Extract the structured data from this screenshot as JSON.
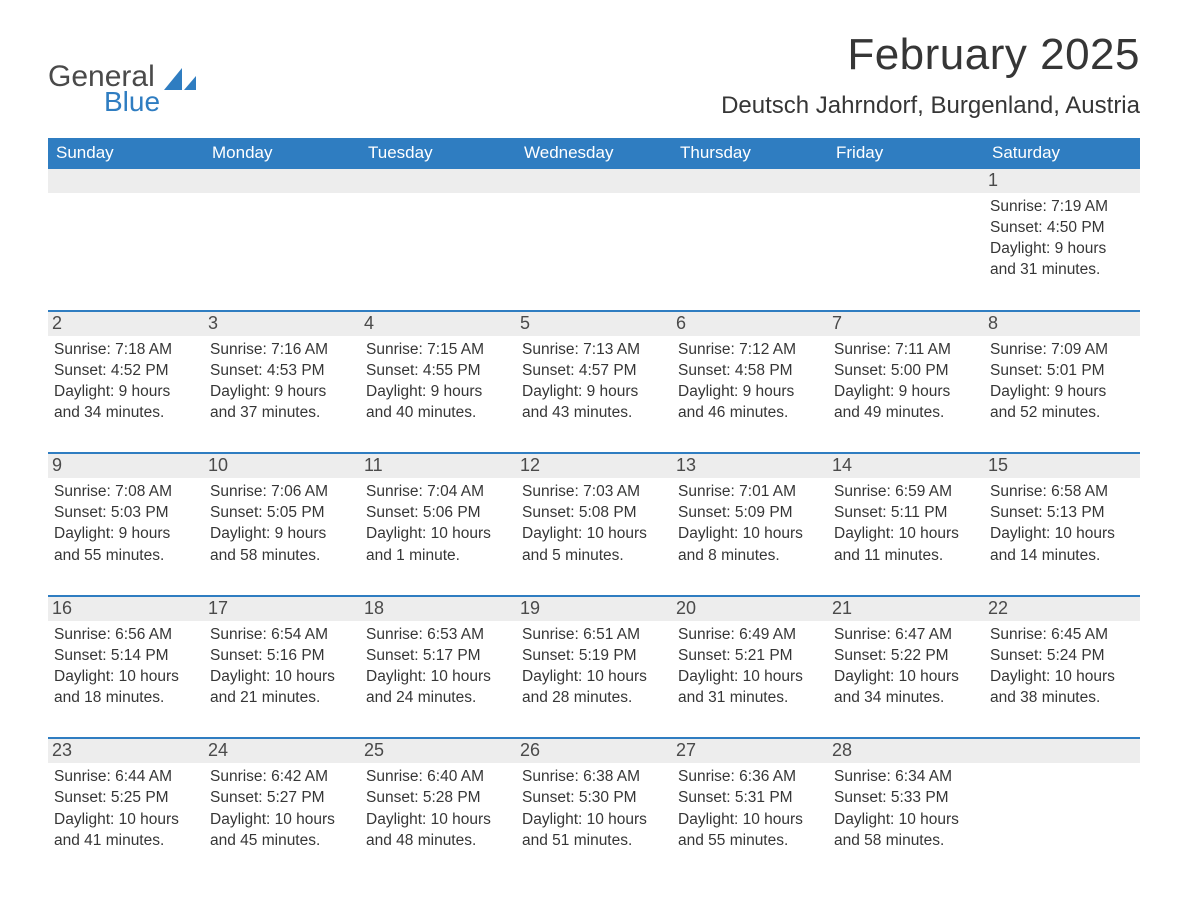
{
  "colors": {
    "header_bg": "#2f7dc1",
    "header_text": "#ffffff",
    "daynum_bg": "#ededed",
    "text": "#363636",
    "logo_gray": "#4a4a4a",
    "logo_blue": "#2f7dc1",
    "week_border": "#2f7dc1"
  },
  "logo": {
    "word1": "General",
    "word2": "Blue"
  },
  "title": "February 2025",
  "location": "Deutsch Jahrndorf, Burgenland, Austria",
  "weekdays": [
    "Sunday",
    "Monday",
    "Tuesday",
    "Wednesday",
    "Thursday",
    "Friday",
    "Saturday"
  ],
  "weeks": [
    [
      null,
      null,
      null,
      null,
      null,
      null,
      {
        "n": "1",
        "sunrise": "Sunrise: 7:19 AM",
        "sunset": "Sunset: 4:50 PM",
        "day1": "Daylight: 9 hours",
        "day2": "and 31 minutes."
      }
    ],
    [
      {
        "n": "2",
        "sunrise": "Sunrise: 7:18 AM",
        "sunset": "Sunset: 4:52 PM",
        "day1": "Daylight: 9 hours",
        "day2": "and 34 minutes."
      },
      {
        "n": "3",
        "sunrise": "Sunrise: 7:16 AM",
        "sunset": "Sunset: 4:53 PM",
        "day1": "Daylight: 9 hours",
        "day2": "and 37 minutes."
      },
      {
        "n": "4",
        "sunrise": "Sunrise: 7:15 AM",
        "sunset": "Sunset: 4:55 PM",
        "day1": "Daylight: 9 hours",
        "day2": "and 40 minutes."
      },
      {
        "n": "5",
        "sunrise": "Sunrise: 7:13 AM",
        "sunset": "Sunset: 4:57 PM",
        "day1": "Daylight: 9 hours",
        "day2": "and 43 minutes."
      },
      {
        "n": "6",
        "sunrise": "Sunrise: 7:12 AM",
        "sunset": "Sunset: 4:58 PM",
        "day1": "Daylight: 9 hours",
        "day2": "and 46 minutes."
      },
      {
        "n": "7",
        "sunrise": "Sunrise: 7:11 AM",
        "sunset": "Sunset: 5:00 PM",
        "day1": "Daylight: 9 hours",
        "day2": "and 49 minutes."
      },
      {
        "n": "8",
        "sunrise": "Sunrise: 7:09 AM",
        "sunset": "Sunset: 5:01 PM",
        "day1": "Daylight: 9 hours",
        "day2": "and 52 minutes."
      }
    ],
    [
      {
        "n": "9",
        "sunrise": "Sunrise: 7:08 AM",
        "sunset": "Sunset: 5:03 PM",
        "day1": "Daylight: 9 hours",
        "day2": "and 55 minutes."
      },
      {
        "n": "10",
        "sunrise": "Sunrise: 7:06 AM",
        "sunset": "Sunset: 5:05 PM",
        "day1": "Daylight: 9 hours",
        "day2": "and 58 minutes."
      },
      {
        "n": "11",
        "sunrise": "Sunrise: 7:04 AM",
        "sunset": "Sunset: 5:06 PM",
        "day1": "Daylight: 10 hours",
        "day2": "and 1 minute."
      },
      {
        "n": "12",
        "sunrise": "Sunrise: 7:03 AM",
        "sunset": "Sunset: 5:08 PM",
        "day1": "Daylight: 10 hours",
        "day2": "and 5 minutes."
      },
      {
        "n": "13",
        "sunrise": "Sunrise: 7:01 AM",
        "sunset": "Sunset: 5:09 PM",
        "day1": "Daylight: 10 hours",
        "day2": "and 8 minutes."
      },
      {
        "n": "14",
        "sunrise": "Sunrise: 6:59 AM",
        "sunset": "Sunset: 5:11 PM",
        "day1": "Daylight: 10 hours",
        "day2": "and 11 minutes."
      },
      {
        "n": "15",
        "sunrise": "Sunrise: 6:58 AM",
        "sunset": "Sunset: 5:13 PM",
        "day1": "Daylight: 10 hours",
        "day2": "and 14 minutes."
      }
    ],
    [
      {
        "n": "16",
        "sunrise": "Sunrise: 6:56 AM",
        "sunset": "Sunset: 5:14 PM",
        "day1": "Daylight: 10 hours",
        "day2": "and 18 minutes."
      },
      {
        "n": "17",
        "sunrise": "Sunrise: 6:54 AM",
        "sunset": "Sunset: 5:16 PM",
        "day1": "Daylight: 10 hours",
        "day2": "and 21 minutes."
      },
      {
        "n": "18",
        "sunrise": "Sunrise: 6:53 AM",
        "sunset": "Sunset: 5:17 PM",
        "day1": "Daylight: 10 hours",
        "day2": "and 24 minutes."
      },
      {
        "n": "19",
        "sunrise": "Sunrise: 6:51 AM",
        "sunset": "Sunset: 5:19 PM",
        "day1": "Daylight: 10 hours",
        "day2": "and 28 minutes."
      },
      {
        "n": "20",
        "sunrise": "Sunrise: 6:49 AM",
        "sunset": "Sunset: 5:21 PM",
        "day1": "Daylight: 10 hours",
        "day2": "and 31 minutes."
      },
      {
        "n": "21",
        "sunrise": "Sunrise: 6:47 AM",
        "sunset": "Sunset: 5:22 PM",
        "day1": "Daylight: 10 hours",
        "day2": "and 34 minutes."
      },
      {
        "n": "22",
        "sunrise": "Sunrise: 6:45 AM",
        "sunset": "Sunset: 5:24 PM",
        "day1": "Daylight: 10 hours",
        "day2": "and 38 minutes."
      }
    ],
    [
      {
        "n": "23",
        "sunrise": "Sunrise: 6:44 AM",
        "sunset": "Sunset: 5:25 PM",
        "day1": "Daylight: 10 hours",
        "day2": "and 41 minutes."
      },
      {
        "n": "24",
        "sunrise": "Sunrise: 6:42 AM",
        "sunset": "Sunset: 5:27 PM",
        "day1": "Daylight: 10 hours",
        "day2": "and 45 minutes."
      },
      {
        "n": "25",
        "sunrise": "Sunrise: 6:40 AM",
        "sunset": "Sunset: 5:28 PM",
        "day1": "Daylight: 10 hours",
        "day2": "and 48 minutes."
      },
      {
        "n": "26",
        "sunrise": "Sunrise: 6:38 AM",
        "sunset": "Sunset: 5:30 PM",
        "day1": "Daylight: 10 hours",
        "day2": "and 51 minutes."
      },
      {
        "n": "27",
        "sunrise": "Sunrise: 6:36 AM",
        "sunset": "Sunset: 5:31 PM",
        "day1": "Daylight: 10 hours",
        "day2": "and 55 minutes."
      },
      {
        "n": "28",
        "sunrise": "Sunrise: 6:34 AM",
        "sunset": "Sunset: 5:33 PM",
        "day1": "Daylight: 10 hours",
        "day2": "and 58 minutes."
      },
      null
    ]
  ]
}
